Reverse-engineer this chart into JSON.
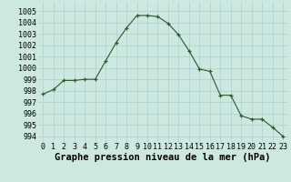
{
  "x": [
    0,
    1,
    2,
    3,
    4,
    5,
    6,
    7,
    8,
    9,
    10,
    11,
    12,
    13,
    14,
    15,
    16,
    17,
    18,
    19,
    20,
    21,
    22,
    23
  ],
  "y": [
    997.7,
    998.1,
    998.9,
    998.9,
    999.0,
    999.0,
    1000.6,
    1002.2,
    1003.5,
    1004.6,
    1004.6,
    1004.5,
    1003.9,
    1002.9,
    1001.5,
    999.9,
    999.7,
    997.6,
    997.6,
    995.8,
    995.5,
    995.5,
    994.8,
    994.0
  ],
  "line_color": "#2d5a27",
  "marker": "+",
  "background_color": "#cce8e0",
  "grid_color": "#aad0c8",
  "ylabel_values": [
    994,
    995,
    996,
    997,
    998,
    999,
    1000,
    1001,
    1002,
    1003,
    1004,
    1005
  ],
  "ylim": [
    993.5,
    1005.8
  ],
  "xlim": [
    -0.5,
    23.5
  ],
  "xlabel": "Graphe pression niveau de la mer (hPa)",
  "tick_fontsize": 6,
  "xlabel_fontsize": 7.5
}
